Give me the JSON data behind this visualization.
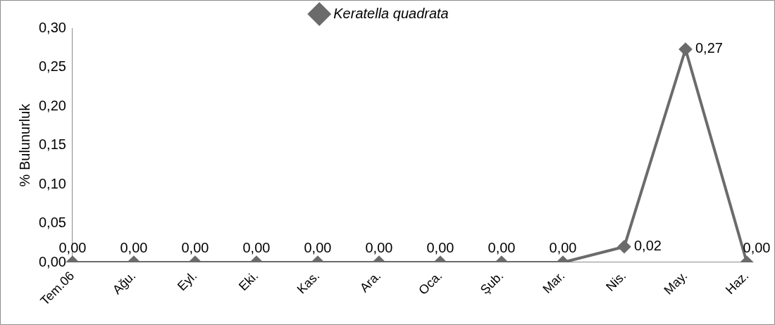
{
  "chart_data": {
    "type": "line",
    "ylabel": "% Bulunurluk",
    "categories": [
      "Tem.06",
      "Ağu.",
      "Eyl.",
      "Eki.",
      "Kas.",
      "Ara.",
      "Oca.",
      "Şub.",
      "Mar.",
      "Nis.",
      "May.",
      "Haz."
    ],
    "series": [
      {
        "name": "Keratella quadrata",
        "color": "#6b6b6b",
        "values": [
          0,
          0,
          0,
          0,
          0,
          0,
          0,
          0,
          0,
          0.02,
          0.273,
          0
        ],
        "value_labels": [
          "0,00",
          "0,00",
          "0,00",
          "0,00",
          "0,00",
          "0,00",
          "0,00",
          "0,00",
          "0,00",
          "0,02",
          "0,27",
          "0,00"
        ]
      }
    ],
    "ylim": [
      0,
      0.3
    ],
    "yticks": [
      {
        "value": 0,
        "label": "0,00"
      },
      {
        "value": 0.05,
        "label": "0,05"
      },
      {
        "value": 0.1,
        "label": "0,10"
      },
      {
        "value": 0.15,
        "label": "0,15"
      },
      {
        "value": 0.2,
        "label": "0,20"
      },
      {
        "value": 0.25,
        "label": "0,25"
      },
      {
        "value": 0.3,
        "label": "0,30"
      }
    ],
    "grid": false,
    "legend": "top",
    "marker": "diamond",
    "line_style": "solid"
  }
}
